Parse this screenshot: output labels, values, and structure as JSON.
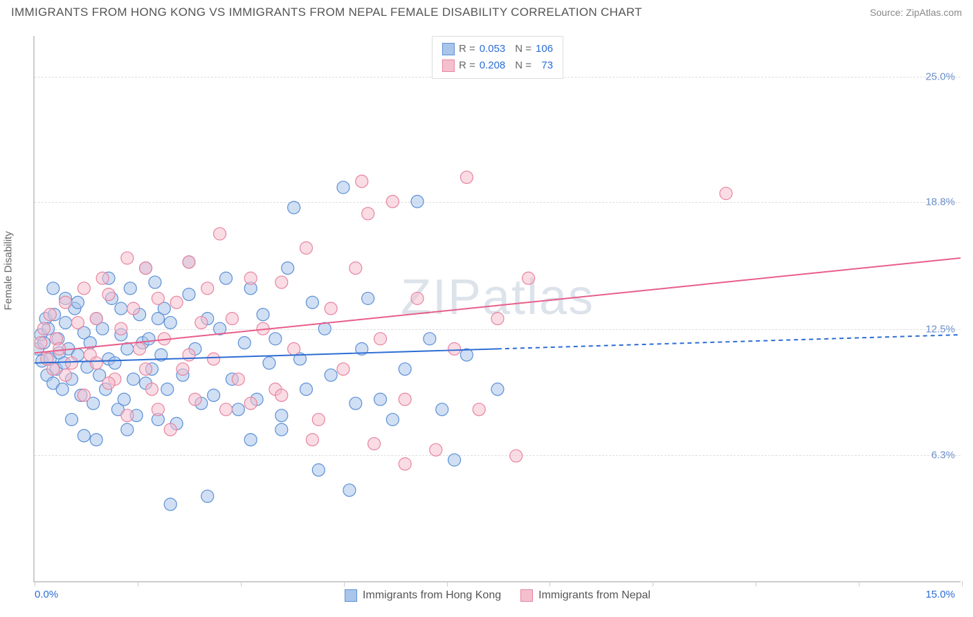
{
  "header": {
    "title": "IMMIGRANTS FROM HONG KONG VS IMMIGRANTS FROM NEPAL FEMALE DISABILITY CORRELATION CHART",
    "source_prefix": "Source: ",
    "source_name": "ZipAtlas.com"
  },
  "chart": {
    "type": "scatter",
    "ylabel": "Female Disability",
    "xlim": [
      0,
      15
    ],
    "ylim": [
      0,
      27
    ],
    "ytick_values": [
      6.3,
      12.5,
      18.8,
      25.0
    ],
    "ytick_labels": [
      "6.3%",
      "12.5%",
      "18.8%",
      "25.0%"
    ],
    "xtick_values": [
      0,
      1.667,
      3.333,
      5.0,
      6.667,
      8.333,
      10.0,
      11.667,
      13.333,
      15.0
    ],
    "x_axis_label_left": "0.0%",
    "x_axis_label_right": "15.0%",
    "grid_color": "#dddddd",
    "axis_color": "#cccccc",
    "background_color": "#ffffff",
    "watermark_text": "ZIPatlas",
    "watermark_color": "#cfd8e3",
    "series": {
      "hk": {
        "label": "Immigrants from Hong Kong",
        "R": "0.053",
        "N": "106",
        "point_fill": "#a9c5ea",
        "point_stroke": "#5b8fd6",
        "point_opacity": 0.55,
        "point_radius": 9,
        "line_color": "#2b6cd4",
        "line_width": 2,
        "line_dash_extension": true,
        "regression": {
          "x1": 0,
          "y1": 10.8,
          "x2": 15,
          "y2": 12.2,
          "solid_until_x": 7.5
        },
        "points": [
          [
            0.05,
            11.5
          ],
          [
            0.1,
            12.2
          ],
          [
            0.12,
            10.9
          ],
          [
            0.15,
            11.8
          ],
          [
            0.18,
            13.0
          ],
          [
            0.2,
            10.2
          ],
          [
            0.22,
            12.5
          ],
          [
            0.25,
            11.0
          ],
          [
            0.3,
            9.8
          ],
          [
            0.32,
            13.2
          ],
          [
            0.35,
            10.5
          ],
          [
            0.38,
            12.0
          ],
          [
            0.4,
            11.3
          ],
          [
            0.45,
            9.5
          ],
          [
            0.48,
            10.8
          ],
          [
            0.5,
            12.8
          ],
          [
            0.55,
            11.5
          ],
          [
            0.6,
            10.0
          ],
          [
            0.65,
            13.5
          ],
          [
            0.7,
            11.2
          ],
          [
            0.75,
            9.2
          ],
          [
            0.8,
            12.3
          ],
          [
            0.85,
            10.6
          ],
          [
            0.9,
            11.8
          ],
          [
            0.95,
            8.8
          ],
          [
            1.0,
            13.0
          ],
          [
            1.05,
            10.2
          ],
          [
            1.1,
            12.5
          ],
          [
            1.15,
            9.5
          ],
          [
            1.2,
            11.0
          ],
          [
            1.25,
            14.0
          ],
          [
            1.3,
            10.8
          ],
          [
            1.35,
            8.5
          ],
          [
            1.4,
            12.2
          ],
          [
            1.45,
            9.0
          ],
          [
            1.5,
            11.5
          ],
          [
            1.55,
            14.5
          ],
          [
            1.6,
            10.0
          ],
          [
            1.65,
            8.2
          ],
          [
            1.7,
            13.2
          ],
          [
            1.75,
            11.8
          ],
          [
            1.8,
            9.8
          ],
          [
            1.85,
            12.0
          ],
          [
            1.9,
            10.5
          ],
          [
            1.95,
            14.8
          ],
          [
            2.0,
            8.0
          ],
          [
            2.05,
            11.2
          ],
          [
            2.1,
            13.5
          ],
          [
            2.15,
            9.5
          ],
          [
            2.2,
            12.8
          ],
          [
            2.3,
            7.8
          ],
          [
            2.4,
            10.2
          ],
          [
            2.5,
            14.2
          ],
          [
            2.6,
            11.5
          ],
          [
            2.7,
            8.8
          ],
          [
            2.8,
            13.0
          ],
          [
            2.9,
            9.2
          ],
          [
            3.0,
            12.5
          ],
          [
            3.1,
            15.0
          ],
          [
            3.2,
            10.0
          ],
          [
            3.3,
            8.5
          ],
          [
            3.4,
            11.8
          ],
          [
            3.5,
            14.5
          ],
          [
            3.6,
            9.0
          ],
          [
            3.7,
            13.2
          ],
          [
            3.8,
            10.8
          ],
          [
            3.9,
            12.0
          ],
          [
            4.0,
            8.2
          ],
          [
            4.1,
            15.5
          ],
          [
            4.2,
            18.5
          ],
          [
            4.3,
            11.0
          ],
          [
            4.4,
            9.5
          ],
          [
            4.5,
            13.8
          ],
          [
            4.6,
            5.5
          ],
          [
            4.7,
            12.5
          ],
          [
            4.8,
            10.2
          ],
          [
            5.0,
            19.5
          ],
          [
            5.1,
            4.5
          ],
          [
            5.2,
            8.8
          ],
          [
            5.3,
            11.5
          ],
          [
            5.4,
            14.0
          ],
          [
            5.6,
            9.0
          ],
          [
            5.8,
            8.0
          ],
          [
            6.0,
            10.5
          ],
          [
            6.2,
            18.8
          ],
          [
            6.4,
            12.0
          ],
          [
            6.6,
            8.5
          ],
          [
            6.8,
            6.0
          ],
          [
            7.0,
            11.2
          ],
          [
            7.5,
            9.5
          ],
          [
            2.2,
            3.8
          ],
          [
            2.8,
            4.2
          ],
          [
            1.0,
            7.0
          ],
          [
            1.5,
            7.5
          ],
          [
            0.6,
            8.0
          ],
          [
            0.8,
            7.2
          ],
          [
            3.5,
            7.0
          ],
          [
            4.0,
            7.5
          ],
          [
            0.3,
            14.5
          ],
          [
            0.5,
            14.0
          ],
          [
            1.2,
            15.0
          ],
          [
            1.8,
            15.5
          ],
          [
            2.5,
            15.8
          ],
          [
            0.7,
            13.8
          ],
          [
            1.4,
            13.5
          ],
          [
            2.0,
            13.0
          ]
        ]
      },
      "nepal": {
        "label": "Immigrants from Nepal",
        "R": "0.208",
        "N": "73",
        "point_fill": "#f4c0cd",
        "point_stroke": "#e8839f",
        "point_opacity": 0.55,
        "point_radius": 9,
        "line_color": "#e85d8a",
        "line_width": 2,
        "line_dash_extension": false,
        "regression": {
          "x1": 0,
          "y1": 11.3,
          "x2": 15,
          "y2": 16.0,
          "solid_until_x": 15
        },
        "points": [
          [
            0.1,
            11.8
          ],
          [
            0.15,
            12.5
          ],
          [
            0.2,
            11.0
          ],
          [
            0.25,
            13.2
          ],
          [
            0.3,
            10.5
          ],
          [
            0.35,
            12.0
          ],
          [
            0.4,
            11.5
          ],
          [
            0.5,
            13.8
          ],
          [
            0.6,
            10.8
          ],
          [
            0.7,
            12.8
          ],
          [
            0.8,
            14.5
          ],
          [
            0.9,
            11.2
          ],
          [
            1.0,
            13.0
          ],
          [
            1.1,
            15.0
          ],
          [
            1.2,
            14.2
          ],
          [
            1.3,
            10.0
          ],
          [
            1.4,
            12.5
          ],
          [
            1.5,
            16.0
          ],
          [
            1.6,
            13.5
          ],
          [
            1.7,
            11.5
          ],
          [
            1.8,
            15.5
          ],
          [
            1.9,
            9.5
          ],
          [
            2.0,
            14.0
          ],
          [
            2.1,
            12.0
          ],
          [
            2.2,
            7.5
          ],
          [
            2.3,
            13.8
          ],
          [
            2.4,
            10.5
          ],
          [
            2.5,
            15.8
          ],
          [
            2.6,
            9.0
          ],
          [
            2.7,
            12.8
          ],
          [
            2.8,
            14.5
          ],
          [
            2.9,
            11.0
          ],
          [
            3.0,
            17.2
          ],
          [
            3.1,
            8.5
          ],
          [
            3.2,
            13.0
          ],
          [
            3.3,
            10.0
          ],
          [
            3.5,
            15.0
          ],
          [
            3.7,
            12.5
          ],
          [
            3.9,
            9.5
          ],
          [
            4.0,
            14.8
          ],
          [
            4.2,
            11.5
          ],
          [
            4.4,
            16.5
          ],
          [
            4.6,
            8.0
          ],
          [
            4.8,
            13.5
          ],
          [
            5.0,
            10.5
          ],
          [
            5.2,
            15.5
          ],
          [
            5.3,
            19.8
          ],
          [
            5.4,
            18.2
          ],
          [
            5.6,
            12.0
          ],
          [
            5.8,
            18.8
          ],
          [
            6.0,
            9.0
          ],
          [
            6.2,
            14.0
          ],
          [
            6.5,
            6.5
          ],
          [
            6.8,
            11.5
          ],
          [
            7.0,
            20.0
          ],
          [
            7.2,
            8.5
          ],
          [
            7.5,
            13.0
          ],
          [
            7.8,
            6.2
          ],
          [
            8.0,
            15.0
          ],
          [
            11.2,
            19.2
          ],
          [
            5.5,
            6.8
          ],
          [
            6.0,
            5.8
          ],
          [
            4.5,
            7.0
          ],
          [
            1.5,
            8.2
          ],
          [
            2.0,
            8.5
          ],
          [
            0.8,
            9.2
          ],
          [
            1.2,
            9.8
          ],
          [
            3.5,
            8.8
          ],
          [
            4.0,
            9.2
          ],
          [
            0.5,
            10.2
          ],
          [
            1.0,
            10.8
          ],
          [
            1.8,
            10.5
          ],
          [
            2.5,
            11.2
          ]
        ]
      }
    }
  },
  "legend_top": {
    "rows": [
      {
        "swatch_fill": "#a9c5ea",
        "swatch_stroke": "#5b8fd6",
        "R_label": "R =",
        "R_value": "0.053",
        "N_label": "N =",
        "N_value": "106"
      },
      {
        "swatch_fill": "#f4c0cd",
        "swatch_stroke": "#e8839f",
        "R_label": "R =",
        "R_value": "0.208",
        "N_label": "N =",
        "N_value": "  73"
      }
    ]
  },
  "legend_bottom": {
    "items": [
      {
        "swatch_fill": "#a9c5ea",
        "swatch_stroke": "#5b8fd6",
        "label": "Immigrants from Hong Kong"
      },
      {
        "swatch_fill": "#f4c0cd",
        "swatch_stroke": "#e8839f",
        "label": "Immigrants from Nepal"
      }
    ]
  }
}
